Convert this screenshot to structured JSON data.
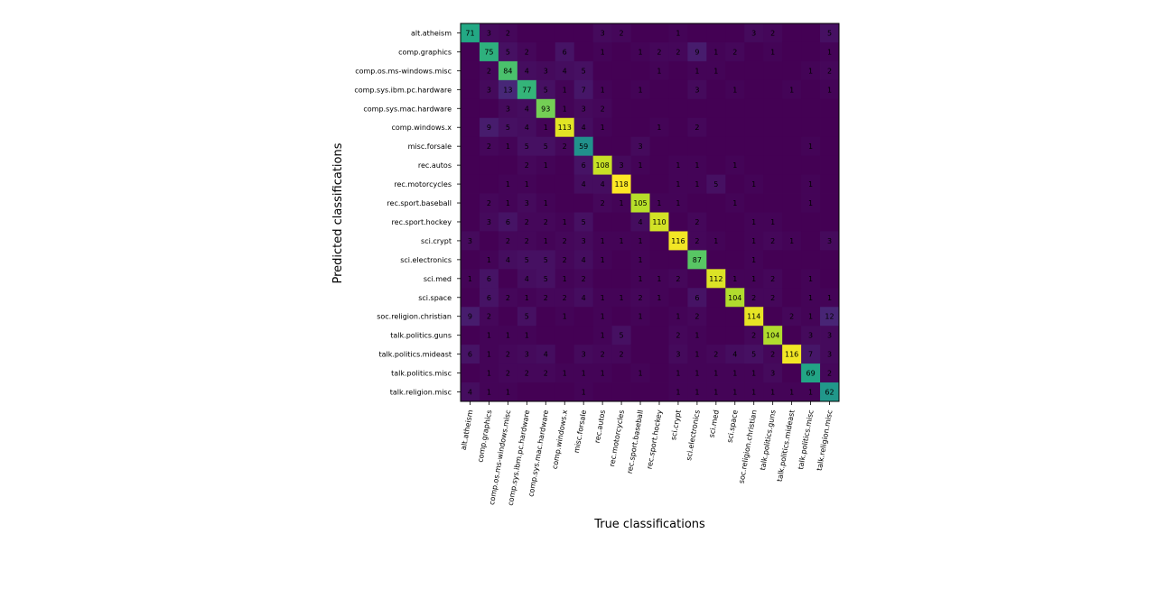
{
  "chart_data": {
    "type": "heatmap",
    "colormap": "viridis",
    "xlabel": "True classifications",
    "ylabel": "Predicted classifications",
    "row_labels": [
      "alt.atheism",
      "comp.graphics",
      "comp.os.ms-windows.misc",
      "comp.sys.ibm.pc.hardware",
      "comp.sys.mac.hardware",
      "comp.windows.x",
      "misc.forsale",
      "rec.autos",
      "rec.motorcycles",
      "rec.sport.baseball",
      "rec.sport.hockey",
      "sci.crypt",
      "sci.electronics",
      "sci.med",
      "sci.space",
      "soc.religion.christian",
      "talk.politics.guns",
      "talk.politics.mideast",
      "talk.politics.misc",
      "talk.religion.misc"
    ],
    "col_labels": [
      "alt.atheism",
      "comp.graphics",
      "comp.os.ms-windows.misc",
      "comp.sys.ibm.pc.hardware",
      "comp.sys.mac.hardware",
      "comp.windows.x",
      "misc.forsale",
      "rec.autos",
      "rec.motorcycles",
      "rec.sport.baseball",
      "rec.sport.hockey",
      "sci.crypt",
      "sci.electronics",
      "sci.med",
      "sci.space",
      "soc.religion.christian",
      "talk.politics.guns",
      "talk.politics.mideast",
      "talk.politics.misc",
      "talk.religion.misc"
    ],
    "values": [
      [
        71,
        3,
        2,
        0,
        0,
        0,
        0,
        3,
        2,
        0,
        0,
        1,
        0,
        0,
        0,
        3,
        2,
        0,
        0,
        5
      ],
      [
        0,
        75,
        5,
        2,
        0,
        6,
        0,
        1,
        0,
        1,
        2,
        2,
        9,
        1,
        2,
        0,
        1,
        0,
        0,
        1
      ],
      [
        0,
        2,
        84,
        4,
        3,
        4,
        5,
        0,
        0,
        0,
        1,
        0,
        1,
        1,
        0,
        0,
        0,
        0,
        1,
        2
      ],
      [
        0,
        3,
        13,
        77,
        5,
        1,
        7,
        1,
        0,
        1,
        0,
        0,
        3,
        0,
        1,
        0,
        0,
        1,
        0,
        1
      ],
      [
        0,
        0,
        3,
        4,
        93,
        1,
        3,
        2,
        0,
        0,
        0,
        0,
        0,
        0,
        0,
        0,
        0,
        0,
        0,
        0
      ],
      [
        0,
        9,
        5,
        4,
        1,
        113,
        4,
        1,
        0,
        0,
        1,
        0,
        2,
        0,
        0,
        0,
        0,
        0,
        0,
        0
      ],
      [
        0,
        2,
        1,
        5,
        5,
        2,
        59,
        0,
        0,
        3,
        0,
        0,
        0,
        0,
        0,
        0,
        0,
        0,
        1,
        0
      ],
      [
        0,
        0,
        0,
        2,
        1,
        0,
        6,
        108,
        3,
        1,
        0,
        1,
        1,
        0,
        1,
        0,
        0,
        0,
        0,
        0
      ],
      [
        0,
        0,
        1,
        1,
        0,
        0,
        4,
        4,
        118,
        0,
        0,
        1,
        1,
        5,
        0,
        1,
        0,
        0,
        1,
        0
      ],
      [
        0,
        2,
        1,
        3,
        1,
        0,
        0,
        2,
        1,
        105,
        1,
        1,
        0,
        0,
        1,
        0,
        0,
        0,
        1,
        0
      ],
      [
        0,
        3,
        6,
        2,
        2,
        1,
        5,
        0,
        0,
        4,
        110,
        0,
        2,
        0,
        0,
        1,
        1,
        0,
        0,
        0
      ],
      [
        3,
        0,
        2,
        2,
        1,
        2,
        3,
        1,
        1,
        1,
        0,
        116,
        2,
        1,
        0,
        1,
        2,
        1,
        0,
        3
      ],
      [
        0,
        1,
        4,
        5,
        5,
        2,
        4,
        1,
        0,
        1,
        0,
        0,
        87,
        0,
        0,
        1,
        0,
        0,
        0,
        0
      ],
      [
        1,
        6,
        0,
        4,
        5,
        1,
        2,
        0,
        0,
        1,
        1,
        2,
        0,
        112,
        1,
        1,
        2,
        0,
        1,
        0
      ],
      [
        0,
        6,
        2,
        1,
        2,
        2,
        4,
        1,
        1,
        2,
        1,
        0,
        6,
        0,
        104,
        2,
        2,
        0,
        1,
        1
      ],
      [
        9,
        2,
        0,
        5,
        0,
        1,
        0,
        1,
        0,
        1,
        0,
        1,
        2,
        0,
        0,
        114,
        0,
        2,
        1,
        12
      ],
      [
        0,
        1,
        1,
        1,
        0,
        0,
        0,
        1,
        5,
        0,
        0,
        2,
        1,
        0,
        0,
        2,
        104,
        0,
        3,
        3
      ],
      [
        6,
        1,
        2,
        3,
        4,
        0,
        3,
        2,
        2,
        0,
        0,
        3,
        1,
        2,
        4,
        5,
        2,
        116,
        7,
        3
      ],
      [
        0,
        1,
        2,
        2,
        2,
        1,
        1,
        1,
        0,
        1,
        0,
        1,
        1,
        1,
        1,
        1,
        3,
        0,
        69,
        2
      ],
      [
        4,
        1,
        1,
        0,
        0,
        0,
        1,
        0,
        0,
        0,
        0,
        1,
        1,
        1,
        1,
        1,
        1,
        1,
        1,
        62
      ]
    ]
  }
}
